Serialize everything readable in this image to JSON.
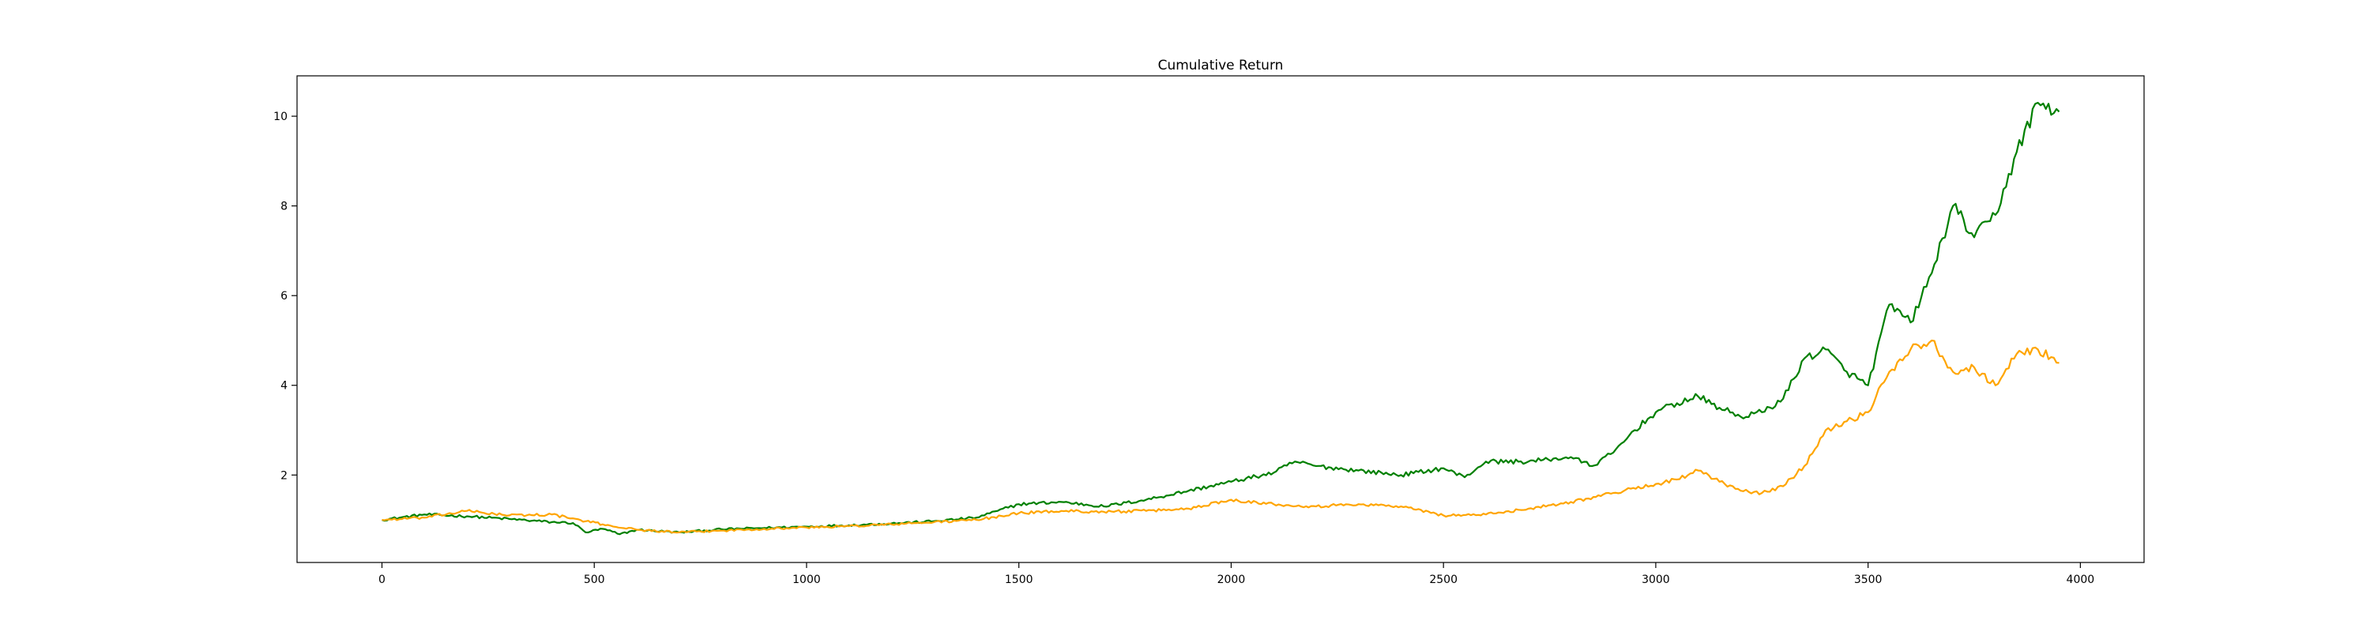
{
  "chart_data": {
    "type": "line",
    "title": "Cumulative Return",
    "xlabel": "",
    "ylabel": "",
    "xlim": [
      -200,
      4150
    ],
    "ylim": [
      0.05,
      10.9
    ],
    "xticks": [
      0,
      500,
      1000,
      1500,
      2000,
      2500,
      3000,
      3500,
      4000
    ],
    "yticks": [
      2,
      4,
      6,
      8,
      10
    ],
    "grid": false,
    "legend": "none",
    "series": [
      {
        "name": "series-green",
        "color": "#008000",
        "x": [
          0,
          100,
          200,
          300,
          400,
          450,
          480,
          520,
          560,
          600,
          700,
          800,
          900,
          1000,
          1100,
          1200,
          1300,
          1400,
          1450,
          1500,
          1600,
          1700,
          1800,
          1900,
          2000,
          2100,
          2150,
          2200,
          2300,
          2400,
          2500,
          2550,
          2600,
          2700,
          2800,
          2850,
          2900,
          2950,
          3000,
          3050,
          3100,
          3150,
          3200,
          3250,
          3300,
          3350,
          3400,
          3450,
          3500,
          3550,
          3600,
          3650,
          3700,
          3750,
          3800,
          3850,
          3900,
          3950
        ],
        "values": [
          1.0,
          1.12,
          1.08,
          1.02,
          0.95,
          0.93,
          0.72,
          0.8,
          0.68,
          0.78,
          0.72,
          0.79,
          0.82,
          0.85,
          0.88,
          0.92,
          0.97,
          1.05,
          1.2,
          1.35,
          1.4,
          1.3,
          1.45,
          1.65,
          1.85,
          2.05,
          2.3,
          2.2,
          2.1,
          2.0,
          2.15,
          1.95,
          2.3,
          2.3,
          2.4,
          2.2,
          2.5,
          3.0,
          3.4,
          3.6,
          3.75,
          3.5,
          3.3,
          3.4,
          3.7,
          4.6,
          4.8,
          4.3,
          4.0,
          5.8,
          5.4,
          6.5,
          8.0,
          7.3,
          7.8,
          9.2,
          10.3,
          10.1
        ]
      },
      {
        "name": "series-orange",
        "color": "#ffa500",
        "x": [
          0,
          100,
          200,
          300,
          400,
          480,
          520,
          600,
          700,
          800,
          900,
          1000,
          1100,
          1200,
          1300,
          1400,
          1500,
          1600,
          1700,
          1800,
          1900,
          2000,
          2100,
          2200,
          2300,
          2400,
          2500,
          2600,
          2700,
          2800,
          2900,
          3000,
          3050,
          3100,
          3150,
          3200,
          3250,
          3300,
          3350,
          3400,
          3450,
          3500,
          3550,
          3600,
          3650,
          3700,
          3750,
          3800,
          3850,
          3900,
          3950
        ],
        "values": [
          1.0,
          1.05,
          1.2,
          1.1,
          1.12,
          0.97,
          0.9,
          0.78,
          0.72,
          0.76,
          0.8,
          0.83,
          0.86,
          0.9,
          0.95,
          1.0,
          1.15,
          1.2,
          1.18,
          1.2,
          1.25,
          1.45,
          1.35,
          1.3,
          1.35,
          1.3,
          1.1,
          1.12,
          1.25,
          1.4,
          1.6,
          1.8,
          1.9,
          2.1,
          1.85,
          1.65,
          1.6,
          1.75,
          2.2,
          3.0,
          3.2,
          3.4,
          4.3,
          4.8,
          5.0,
          4.3,
          4.4,
          4.0,
          4.7,
          4.8,
          4.5
        ]
      }
    ]
  }
}
